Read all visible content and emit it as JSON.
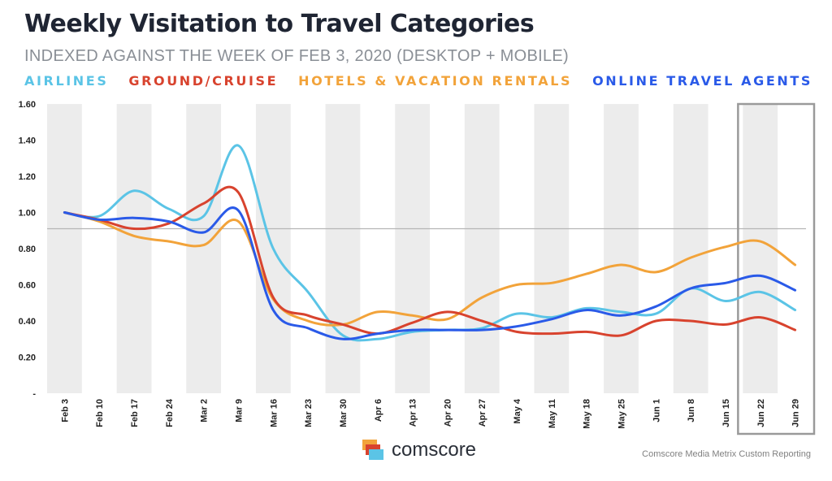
{
  "title": "Weekly Visitation to Travel Categories",
  "subtitle": "INDEXED AGAINST THE WEEK OF FEB 3, 2020 (DESKTOP + MOBILE)",
  "brand": {
    "name": "comscore"
  },
  "source": "Comscore Media Metrix Custom Reporting",
  "chart_data": {
    "type": "line",
    "title": "Weekly Visitation to Travel Categories",
    "subtitle": "INDEXED AGAINST THE WEEK OF FEB 3, 2020 (DESKTOP + MOBILE)",
    "x": [
      "Feb 3",
      "Feb 10",
      "Feb 17",
      "Feb 24",
      "Mar 2",
      "Mar 9",
      "Mar 16",
      "Mar 23",
      "Mar 30",
      "Apr 6",
      "Apr 13",
      "Apr 20",
      "Apr 27",
      "May 4",
      "May 11",
      "May 18",
      "May 25",
      "Jun 1",
      "Jun 8",
      "Jun 15",
      "Jun 22",
      "Jun 29"
    ],
    "ylim": [
      0,
      1.6
    ],
    "y_ticks": [
      "-",
      "0.20",
      "0.40",
      "0.60",
      "0.80",
      "1.00",
      "1.20",
      "1.40",
      "1.60"
    ],
    "y_tick_values": [
      0,
      0.2,
      0.4,
      0.6,
      0.8,
      1.0,
      1.2,
      1.4,
      1.6
    ],
    "reference_line": 0.91,
    "legend_position": "top",
    "highlight_categories": [
      "Jun 22",
      "Jun 29"
    ],
    "grid": "alternating vertical bands",
    "series": [
      {
        "name": "AIRLINES",
        "color": "#5bc4e6",
        "values": [
          1.0,
          0.98,
          1.12,
          1.02,
          0.98,
          1.37,
          0.8,
          0.56,
          0.32,
          0.3,
          0.34,
          0.35,
          0.36,
          0.44,
          0.42,
          0.47,
          0.45,
          0.44,
          0.58,
          0.51,
          0.56,
          0.46
        ]
      },
      {
        "name": "GROUND/CRUISE",
        "color": "#d8432e",
        "values": [
          1.0,
          0.96,
          0.91,
          0.94,
          1.05,
          1.11,
          0.53,
          0.43,
          0.38,
          0.33,
          0.39,
          0.45,
          0.4,
          0.34,
          0.33,
          0.34,
          0.32,
          0.4,
          0.4,
          0.38,
          0.42,
          0.35
        ]
      },
      {
        "name": "HOTELS & VACATION RENTALS",
        "color": "#f2a33a",
        "values": [
          1.0,
          0.95,
          0.87,
          0.84,
          0.82,
          0.95,
          0.52,
          0.4,
          0.38,
          0.45,
          0.43,
          0.41,
          0.53,
          0.6,
          0.61,
          0.66,
          0.71,
          0.67,
          0.75,
          0.81,
          0.84,
          0.71
        ]
      },
      {
        "name": "ONLINE TRAVEL AGENTS",
        "color": "#2a5ae8",
        "values": [
          1.0,
          0.96,
          0.97,
          0.95,
          0.89,
          1.01,
          0.46,
          0.36,
          0.3,
          0.33,
          0.35,
          0.35,
          0.35,
          0.37,
          0.41,
          0.46,
          0.43,
          0.48,
          0.58,
          0.61,
          0.65,
          0.57
        ]
      }
    ]
  }
}
